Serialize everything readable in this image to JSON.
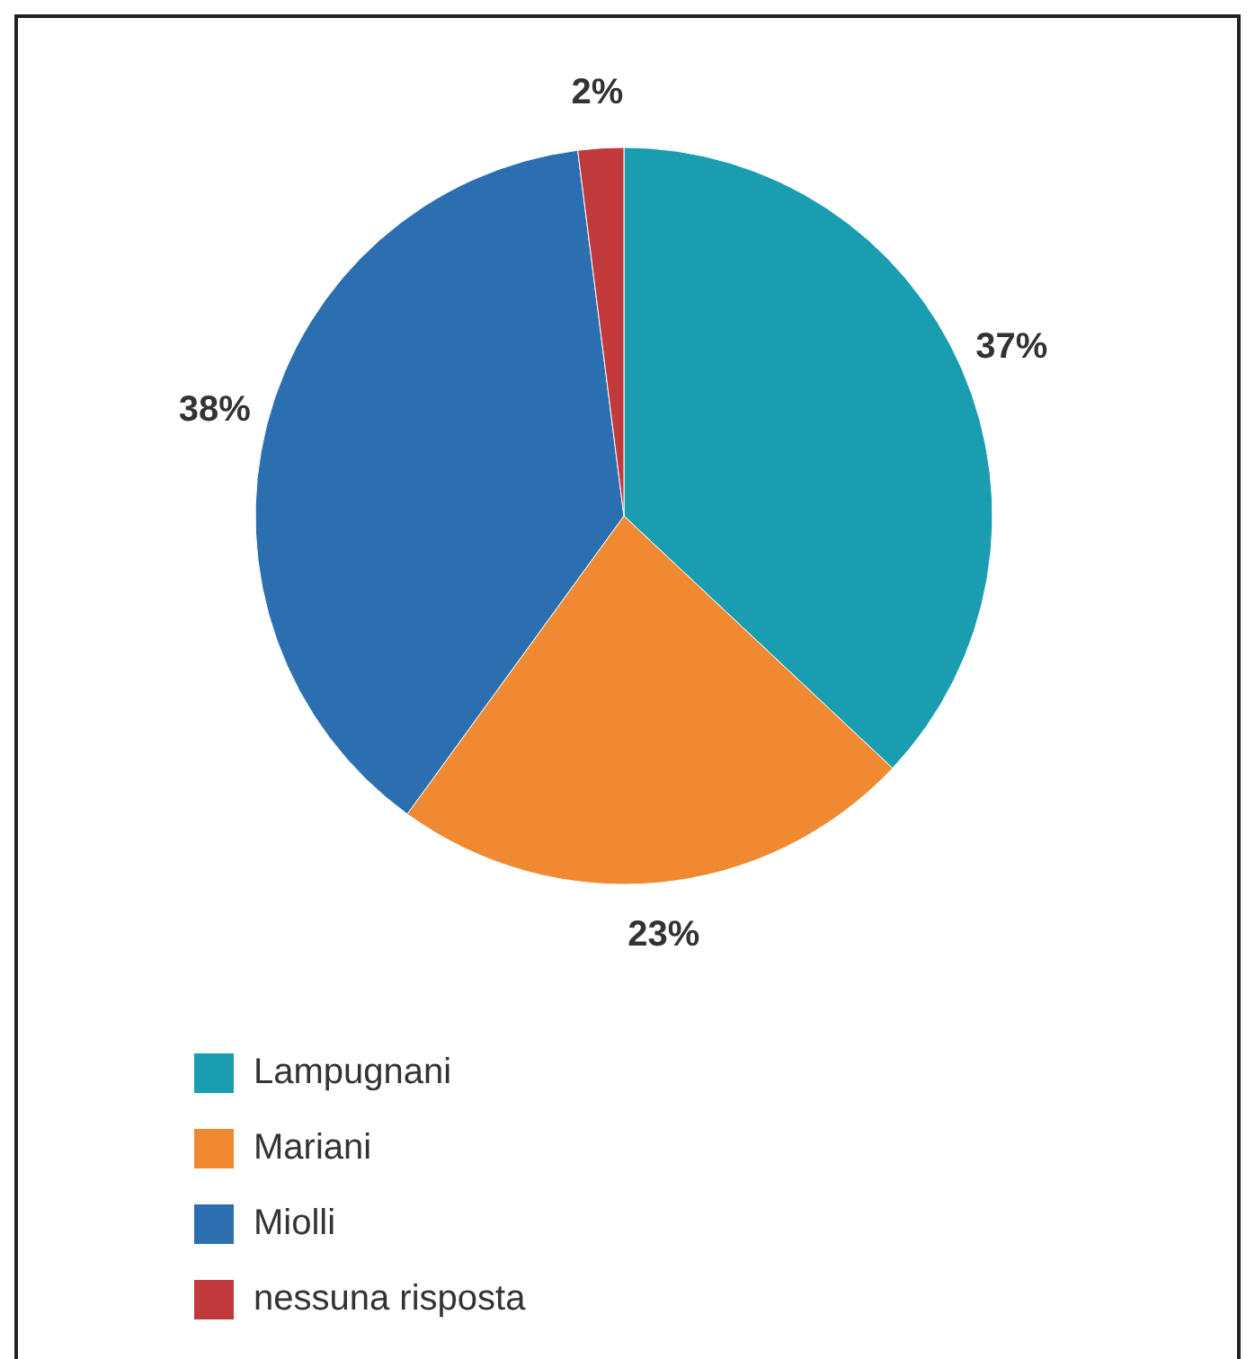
{
  "chart_data": {
    "type": "pie",
    "categories": [
      "Lampugnani",
      "Mariani",
      "Miolli",
      "nessuna risposta"
    ],
    "values": [
      37,
      23,
      38,
      2
    ],
    "colors": [
      "#1a9db0",
      "#f08a32",
      "#2b6fb0",
      "#c0393b"
    ],
    "value_labels": [
      "37%",
      "23%",
      "38%",
      "2%"
    ],
    "legend": "bottom left"
  }
}
